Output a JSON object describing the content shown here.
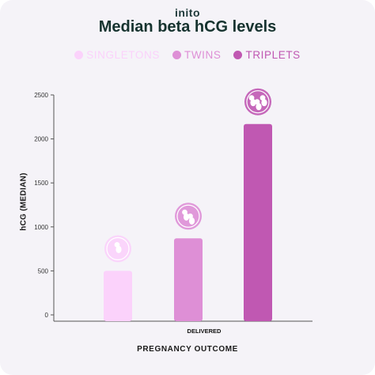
{
  "brand": "inito",
  "chart_data": {
    "type": "bar",
    "title": "Median beta hCG levels",
    "xlabel": "PREGNANCY OUTCOME",
    "ylabel": "hCG (MEDIAN)",
    "categories": [
      "DELIVERED"
    ],
    "series": [
      {
        "name": "SINGLETONS",
        "values": [
          500
        ],
        "color": "#fbd2fb",
        "icon": "single-fetus-icon"
      },
      {
        "name": "TWINS",
        "values": [
          870
        ],
        "color": "#de8fd6",
        "icon": "twin-fetus-icon"
      },
      {
        "name": "TRIPLETS",
        "values": [
          2170
        ],
        "color": "#c058b2",
        "icon": "triplet-fetus-icon"
      }
    ],
    "ylim": [
      0,
      2500
    ],
    "yticks": [
      0,
      500,
      1000,
      1500,
      2000,
      2500
    ],
    "grid": false,
    "legend": "top"
  }
}
